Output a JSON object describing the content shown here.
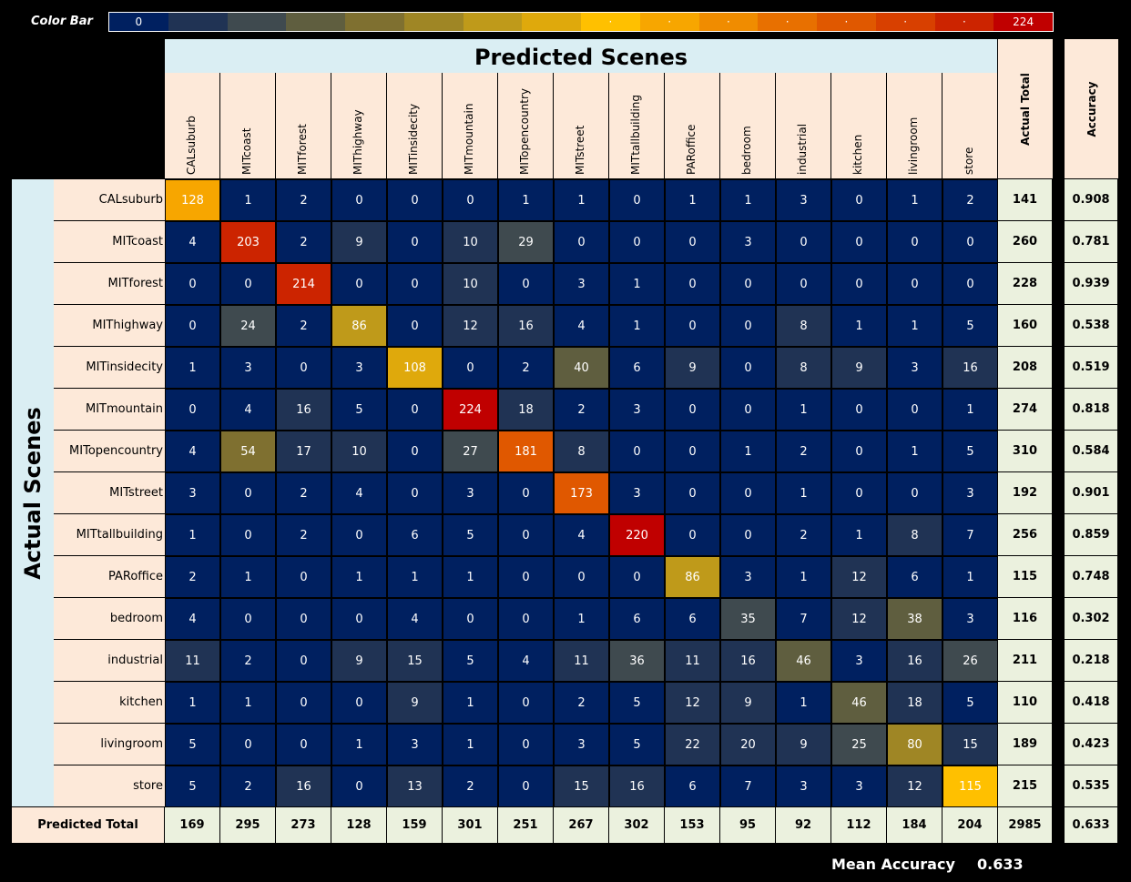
{
  "color_bar": {
    "label": "Color Bar",
    "min": "0",
    "max": "224",
    "colors": [
      "#002060",
      "#203354",
      "#3f4a4f",
      "#5f5e3f",
      "#7f7030",
      "#9f8625",
      "#bf9a1a",
      "#dfa90c",
      "#ffc000",
      "#f7a600",
      "#f08c00",
      "#e87000",
      "#e05800",
      "#d84000",
      "#cc2400",
      "#c00000"
    ]
  },
  "chart_data": {
    "type": "heatmap",
    "title": "Predicted Scenes",
    "ylabel": "Actual Scenes",
    "classes": [
      "CALsuburb",
      "MITcoast",
      "MITforest",
      "MIThighway",
      "MITinsidecity",
      "MITmountain",
      "MITopencountry",
      "MITstreet",
      "MITtallbuilding",
      "PARoffice",
      "bedroom",
      "industrial",
      "kitchen",
      "livingroom",
      "store"
    ],
    "matrix": [
      [
        128,
        1,
        2,
        0,
        0,
        0,
        1,
        1,
        0,
        1,
        1,
        3,
        0,
        1,
        2
      ],
      [
        4,
        203,
        2,
        9,
        0,
        10,
        29,
        0,
        0,
        0,
        3,
        0,
        0,
        0,
        0
      ],
      [
        0,
        0,
        214,
        0,
        0,
        10,
        0,
        3,
        1,
        0,
        0,
        0,
        0,
        0,
        0
      ],
      [
        0,
        24,
        2,
        86,
        0,
        12,
        16,
        4,
        1,
        0,
        0,
        8,
        1,
        1,
        5
      ],
      [
        1,
        3,
        0,
        3,
        108,
        0,
        2,
        40,
        6,
        9,
        0,
        8,
        9,
        3,
        16
      ],
      [
        0,
        4,
        16,
        5,
        0,
        224,
        18,
        2,
        3,
        0,
        0,
        1,
        0,
        0,
        1
      ],
      [
        4,
        54,
        17,
        10,
        0,
        27,
        181,
        8,
        0,
        0,
        1,
        2,
        0,
        1,
        5
      ],
      [
        3,
        0,
        2,
        4,
        0,
        3,
        0,
        173,
        3,
        0,
        0,
        1,
        0,
        0,
        3
      ],
      [
        1,
        0,
        2,
        0,
        6,
        5,
        0,
        4,
        220,
        0,
        0,
        2,
        1,
        8,
        7
      ],
      [
        2,
        1,
        0,
        1,
        1,
        1,
        0,
        0,
        0,
        86,
        3,
        1,
        12,
        6,
        1
      ],
      [
        4,
        0,
        0,
        0,
        4,
        0,
        0,
        1,
        6,
        6,
        35,
        7,
        12,
        38,
        3
      ],
      [
        11,
        2,
        0,
        9,
        15,
        5,
        4,
        11,
        36,
        11,
        16,
        46,
        3,
        16,
        26
      ],
      [
        1,
        1,
        0,
        0,
        9,
        1,
        0,
        2,
        5,
        12,
        9,
        1,
        46,
        18,
        5
      ],
      [
        5,
        0,
        0,
        1,
        3,
        1,
        0,
        3,
        5,
        22,
        20,
        9,
        25,
        80,
        15
      ],
      [
        5,
        2,
        16,
        0,
        13,
        2,
        0,
        15,
        16,
        6,
        7,
        3,
        3,
        12,
        115
      ]
    ],
    "actual_total_label": "Actual Total",
    "actual_totals": [
      141,
      260,
      228,
      160,
      208,
      274,
      310,
      192,
      256,
      115,
      116,
      211,
      110,
      189,
      215
    ],
    "accuracy_label": "Accuracy",
    "accuracy": [
      "0.908",
      "0.781",
      "0.939",
      "0.538",
      "0.519",
      "0.818",
      "0.584",
      "0.901",
      "0.859",
      "0.748",
      "0.302",
      "0.218",
      "0.418",
      "0.423",
      "0.535"
    ],
    "predicted_total_label": "Predicted Total",
    "predicted_totals": [
      169,
      295,
      273,
      128,
      159,
      301,
      251,
      267,
      302,
      153,
      95,
      92,
      112,
      184,
      204
    ],
    "grand_total": "2985",
    "overall_accuracy": "0.633",
    "range": [
      0,
      224
    ]
  },
  "mean": {
    "label": "Mean Accuracy",
    "value": "0.633"
  }
}
